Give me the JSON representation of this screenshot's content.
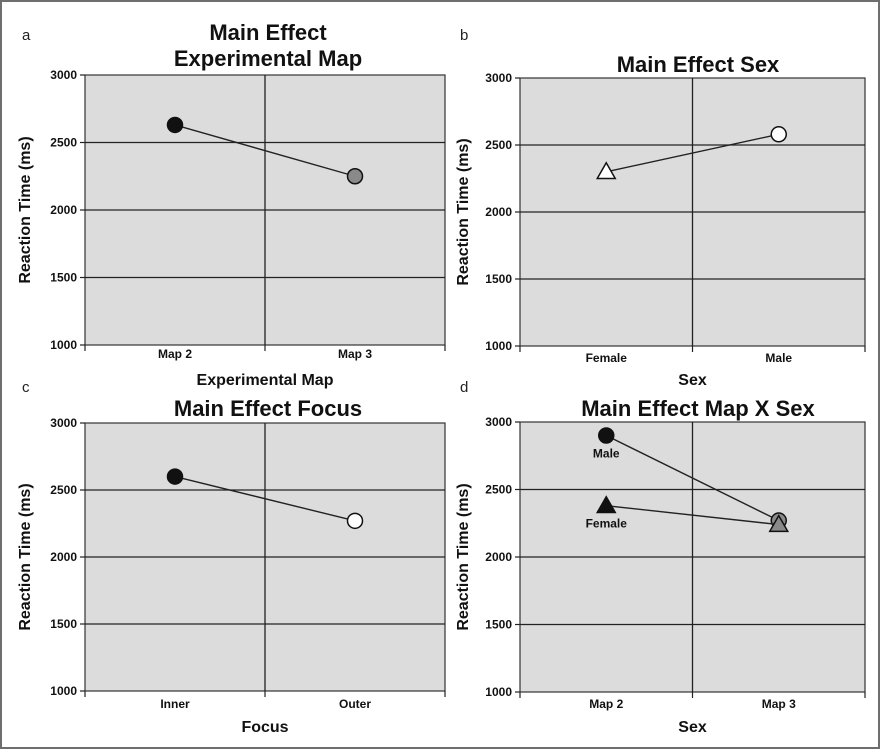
{
  "chart_data": [
    {
      "panel": "a",
      "type": "line",
      "title_lines": [
        "Main Effect",
        "Experimental Map"
      ],
      "xlabel": "Experimental Map",
      "ylabel": "Reaction Time (ms)",
      "categories": [
        "Map 2",
        "Map 3"
      ],
      "ylim": [
        1000,
        3000
      ],
      "yticks": [
        1000,
        1500,
        2000,
        2500,
        3000
      ],
      "grid": true,
      "series": [
        {
          "values": [
            2630,
            2250
          ],
          "markers": [
            "circle",
            "circle"
          ],
          "fills": [
            "#111111",
            "#8a8a8a"
          ]
        }
      ]
    },
    {
      "panel": "b",
      "type": "line",
      "title_lines": [
        "Main Effect Sex"
      ],
      "xlabel": "Sex",
      "ylabel": "Reaction Time (ms)",
      "categories": [
        "Female",
        "Male"
      ],
      "ylim": [
        1000,
        3000
      ],
      "yticks": [
        1000,
        1500,
        2000,
        2500,
        3000
      ],
      "grid": true,
      "series": [
        {
          "values": [
            2300,
            2580
          ],
          "markers": [
            "triangle",
            "circle"
          ],
          "fills": [
            "#ffffff",
            "#ffffff"
          ]
        }
      ]
    },
    {
      "panel": "c",
      "type": "line",
      "title_lines": [
        "Main Effect Focus"
      ],
      "xlabel": "Focus",
      "ylabel": "Reaction Time (ms)",
      "categories": [
        "Inner",
        "Outer"
      ],
      "ylim": [
        1000,
        3000
      ],
      "yticks": [
        1000,
        1500,
        2000,
        2500,
        3000
      ],
      "grid": true,
      "series": [
        {
          "values": [
            2600,
            2270
          ],
          "markers": [
            "circle",
            "circle"
          ],
          "fills": [
            "#111111",
            "#ffffff"
          ]
        }
      ]
    },
    {
      "panel": "d",
      "type": "line",
      "title_lines": [
        "Main Effect Map X Sex"
      ],
      "xlabel": "Sex",
      "ylabel": "Reaction Time (ms)",
      "categories": [
        "Map 2",
        "Map 3"
      ],
      "ylim": [
        1000,
        3000
      ],
      "yticks": [
        1000,
        1500,
        2000,
        2500,
        3000
      ],
      "grid": true,
      "series": [
        {
          "name": "Male",
          "values": [
            2900,
            2270
          ],
          "markers": [
            "circle",
            "circle"
          ],
          "fills": [
            "#111111",
            "#8a8a8a"
          ]
        },
        {
          "name": "Female",
          "values": [
            2380,
            2240
          ],
          "markers": [
            "triangle",
            "triangle"
          ],
          "fills": [
            "#111111",
            "#8a8a8a"
          ]
        }
      ]
    }
  ],
  "colors": {
    "plot_bg": "#dcdcdc",
    "grid": "#222222",
    "line": "#222222"
  }
}
